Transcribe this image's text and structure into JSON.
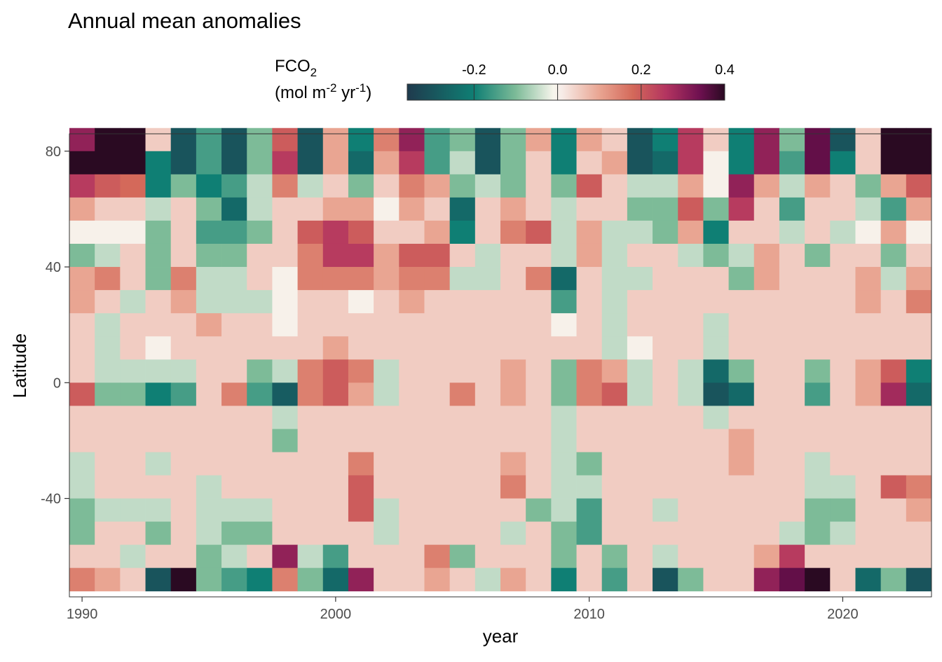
{
  "chart_data": {
    "type": "heatmap",
    "title": "Annual mean anomalies",
    "xlabel": "year",
    "ylabel": "Latitude",
    "legend": {
      "title_line1": "FCO",
      "title_line1_sub": "2",
      "title_line2_prefix": "(mol m",
      "title_line2_sup1": "-2",
      "title_line2_mid": " yr",
      "title_line2_sup2": "-1",
      "title_line2_suffix": ")",
      "ticks": [
        -0.2,
        0.0,
        0.2,
        0.4
      ],
      "tick_labels": [
        "-0.2",
        "0.0",
        "0.2",
        "0.4"
      ],
      "range": [
        -0.36,
        0.4
      ],
      "placement": "top",
      "colors": [
        "#1f3a4d",
        "#0f7f74",
        "#7dbb98",
        "#f7f5ec",
        "#f7ece8",
        "#e9a592",
        "#d4695a",
        "#b33460",
        "#6e1050",
        "#2a0a22"
      ],
      "color_stops": [
        -0.36,
        -0.2,
        -0.1,
        -0.01,
        0.01,
        0.1,
        0.18,
        0.26,
        0.34,
        0.4
      ]
    },
    "x_ticks": [
      1990,
      2000,
      2010,
      2020
    ],
    "x_tick_labels": [
      "1990",
      "2000",
      "2010",
      "2020"
    ],
    "y_ticks": [
      -40,
      0,
      40,
      80
    ],
    "y_tick_labels": [
      "-40",
      "0",
      "40",
      "80"
    ],
    "xlim": [
      1989.5,
      2023.5
    ],
    "ylim": [
      -74,
      86
    ],
    "grid": false,
    "years": [
      1990,
      1991,
      1992,
      1993,
      1994,
      1995,
      1996,
      1997,
      1998,
      1999,
      2000,
      2001,
      2002,
      2003,
      2004,
      2005,
      2006,
      2007,
      2008,
      2009,
      2010,
      2011,
      2012,
      2013,
      2014,
      2015,
      2016,
      2017,
      2018,
      2019,
      2020,
      2021,
      2022,
      2023
    ],
    "lat_bands": [
      84,
      76,
      68,
      60,
      52,
      44,
      36,
      28,
      20,
      12,
      4,
      -4,
      -12,
      -20,
      -28,
      -36,
      -44,
      -52,
      -60,
      -68
    ],
    "values": [
      [
        0.3,
        0.42,
        0.42,
        0.05,
        -0.3,
        -0.15,
        -0.3,
        -0.1,
        0.2,
        -0.3,
        0.1,
        -0.2,
        0.15,
        0.3,
        -0.15,
        -0.1,
        -0.3,
        -0.1,
        0.1,
        -0.2,
        0.1,
        0.05,
        -0.3,
        -0.2,
        0.25,
        0.05,
        -0.2,
        0.3,
        -0.1,
        0.35,
        -0.3,
        0.05,
        0.4,
        0.4
      ],
      [
        0.4,
        0.42,
        0.42,
        -0.2,
        -0.3,
        -0.15,
        -0.3,
        -0.1,
        0.25,
        -0.3,
        0.1,
        -0.25,
        0.1,
        0.25,
        -0.15,
        -0.05,
        -0.3,
        -0.1,
        0.05,
        -0.2,
        0.05,
        0.1,
        -0.3,
        -0.25,
        0.25,
        0.0,
        -0.2,
        0.3,
        -0.15,
        0.35,
        -0.2,
        0.05,
        0.4,
        0.4
      ],
      [
        0.25,
        0.2,
        0.18,
        -0.2,
        -0.1,
        -0.2,
        -0.15,
        -0.05,
        0.15,
        -0.05,
        0.05,
        -0.1,
        0.05,
        0.15,
        0.1,
        -0.1,
        -0.05,
        -0.1,
        0.05,
        -0.1,
        0.2,
        0.05,
        -0.05,
        -0.05,
        0.1,
        0.0,
        0.3,
        0.1,
        -0.05,
        0.1,
        0.05,
        -0.1,
        0.1,
        0.2
      ],
      [
        0.1,
        0.05,
        0.05,
        -0.05,
        0.05,
        -0.1,
        -0.25,
        -0.05,
        0.05,
        0.05,
        0.1,
        0.1,
        0.0,
        0.1,
        0.05,
        -0.25,
        0.05,
        0.1,
        0.05,
        -0.05,
        0.05,
        0.05,
        -0.1,
        -0.1,
        0.2,
        -0.1,
        0.25,
        0.05,
        -0.15,
        0.05,
        0.05,
        -0.05,
        -0.15,
        0.1
      ],
      [
        0.0,
        0.0,
        0.0,
        -0.1,
        0.05,
        -0.15,
        -0.15,
        -0.1,
        0.05,
        0.2,
        0.25,
        0.2,
        0.05,
        0.05,
        0.1,
        -0.2,
        0.05,
        0.15,
        0.2,
        -0.05,
        0.1,
        -0.05,
        -0.05,
        -0.1,
        0.1,
        -0.2,
        0.05,
        0.05,
        -0.05,
        0.05,
        -0.05,
        0.0,
        0.1,
        0.0
      ],
      [
        -0.1,
        -0.05,
        0.05,
        -0.1,
        0.05,
        -0.1,
        -0.1,
        0.05,
        0.05,
        0.15,
        0.25,
        0.25,
        0.1,
        0.2,
        0.2,
        0.05,
        -0.05,
        0.05,
        0.05,
        -0.05,
        0.1,
        -0.05,
        0.05,
        0.05,
        -0.05,
        -0.1,
        -0.05,
        0.1,
        0.05,
        -0.1,
        0.05,
        0.05,
        -0.1,
        0.05
      ],
      [
        0.1,
        0.15,
        0.05,
        -0.1,
        0.15,
        -0.05,
        -0.05,
        0.05,
        0.0,
        0.15,
        0.15,
        0.15,
        0.1,
        0.15,
        0.15,
        -0.05,
        -0.05,
        0.05,
        0.15,
        -0.25,
        0.05,
        -0.05,
        -0.05,
        0.05,
        0.05,
        0.05,
        -0.1,
        0.1,
        0.05,
        0.05,
        0.05,
        0.1,
        -0.05,
        0.1
      ],
      [
        0.1,
        0.05,
        -0.05,
        0.05,
        0.1,
        -0.05,
        -0.05,
        -0.05,
        0.0,
        0.05,
        0.05,
        0.0,
        0.05,
        0.1,
        0.05,
        0.05,
        0.05,
        0.05,
        0.05,
        -0.15,
        0.05,
        -0.05,
        0.05,
        0.05,
        0.05,
        0.05,
        0.05,
        0.05,
        0.05,
        0.05,
        0.05,
        0.1,
        0.05,
        0.15
      ],
      [
        0.05,
        -0.05,
        0.05,
        0.05,
        0.05,
        0.1,
        0.05,
        0.05,
        0.0,
        0.05,
        0.05,
        0.05,
        0.05,
        0.05,
        0.05,
        0.05,
        0.05,
        0.05,
        0.05,
        0.0,
        0.05,
        -0.05,
        0.05,
        0.05,
        0.05,
        -0.05,
        0.05,
        0.05,
        0.05,
        0.05,
        0.05,
        0.05,
        0.05,
        0.05
      ],
      [
        0.05,
        -0.05,
        0.05,
        0.0,
        0.05,
        0.05,
        0.05,
        0.05,
        0.05,
        0.05,
        0.1,
        0.05,
        0.05,
        0.05,
        0.05,
        0.05,
        0.05,
        0.05,
        0.05,
        0.05,
        0.05,
        -0.05,
        0.0,
        0.05,
        0.05,
        -0.05,
        0.05,
        0.05,
        0.05,
        0.05,
        0.05,
        0.05,
        0.05,
        0.05
      ],
      [
        0.05,
        -0.05,
        -0.05,
        -0.05,
        -0.05,
        0.05,
        0.05,
        -0.1,
        -0.05,
        0.15,
        0.2,
        0.15,
        -0.05,
        0.05,
        0.05,
        0.05,
        0.05,
        0.1,
        0.05,
        -0.1,
        0.15,
        0.1,
        -0.05,
        0.05,
        -0.05,
        -0.25,
        -0.1,
        0.05,
        0.05,
        -0.1,
        0.05,
        0.1,
        0.2,
        -0.2
      ],
      [
        0.2,
        -0.1,
        -0.1,
        -0.2,
        -0.15,
        0.05,
        0.15,
        -0.15,
        -0.28,
        0.15,
        0.2,
        0.1,
        -0.05,
        0.05,
        0.05,
        0.15,
        0.05,
        0.1,
        0.05,
        -0.1,
        0.15,
        0.2,
        -0.05,
        0.05,
        -0.05,
        -0.3,
        -0.25,
        0.05,
        0.05,
        -0.15,
        0.05,
        0.1,
        0.28,
        -0.25
      ],
      [
        0.05,
        0.05,
        0.05,
        0.05,
        0.05,
        0.05,
        0.05,
        0.05,
        -0.05,
        0.05,
        0.05,
        0.05,
        0.05,
        0.05,
        0.05,
        0.05,
        0.05,
        0.05,
        0.05,
        -0.05,
        0.05,
        0.05,
        0.05,
        0.05,
        0.05,
        -0.05,
        0.05,
        0.05,
        0.05,
        0.05,
        0.05,
        0.05,
        0.05,
        0.05
      ],
      [
        0.05,
        0.05,
        0.05,
        0.05,
        0.05,
        0.05,
        0.05,
        0.05,
        -0.1,
        0.05,
        0.05,
        0.05,
        0.05,
        0.05,
        0.05,
        0.05,
        0.05,
        0.05,
        0.05,
        -0.05,
        0.05,
        0.05,
        0.05,
        0.05,
        0.05,
        0.05,
        0.1,
        0.05,
        0.05,
        0.05,
        0.05,
        0.05,
        0.05,
        0.05
      ],
      [
        -0.05,
        0.05,
        0.05,
        -0.05,
        0.05,
        0.05,
        0.05,
        0.05,
        0.05,
        0.05,
        0.05,
        0.15,
        0.05,
        0.05,
        0.05,
        0.05,
        0.05,
        0.1,
        0.05,
        -0.05,
        -0.1,
        0.05,
        0.05,
        0.05,
        0.05,
        0.05,
        0.1,
        0.05,
        0.05,
        -0.05,
        0.05,
        0.05,
        0.05,
        0.05
      ],
      [
        -0.05,
        0.05,
        0.05,
        0.05,
        0.05,
        -0.05,
        0.05,
        0.05,
        0.05,
        0.05,
        0.05,
        0.2,
        0.05,
        0.05,
        0.05,
        0.05,
        0.05,
        0.15,
        0.05,
        -0.05,
        -0.05,
        0.05,
        0.05,
        0.05,
        0.05,
        0.05,
        0.05,
        0.05,
        0.05,
        -0.05,
        -0.05,
        0.05,
        0.2,
        0.15
      ],
      [
        -0.1,
        -0.05,
        -0.05,
        -0.05,
        0.05,
        -0.05,
        -0.05,
        -0.05,
        0.05,
        0.05,
        0.05,
        0.2,
        -0.05,
        0.05,
        0.05,
        0.05,
        0.05,
        0.05,
        -0.1,
        -0.05,
        -0.15,
        0.05,
        0.05,
        -0.05,
        0.05,
        0.05,
        0.05,
        0.05,
        0.05,
        -0.1,
        -0.1,
        0.05,
        0.05,
        0.1
      ],
      [
        -0.1,
        0.05,
        0.05,
        -0.1,
        0.05,
        -0.05,
        -0.1,
        -0.1,
        0.05,
        0.05,
        0.05,
        0.05,
        -0.05,
        0.05,
        0.05,
        0.05,
        0.05,
        -0.05,
        0.05,
        -0.1,
        -0.15,
        0.05,
        0.05,
        0.05,
        0.05,
        0.05,
        0.05,
        0.05,
        -0.05,
        -0.1,
        -0.05,
        0.05,
        0.05,
        0.05
      ],
      [
        0.05,
        0.05,
        -0.05,
        0.05,
        0.05,
        -0.1,
        -0.05,
        0.05,
        0.3,
        -0.05,
        -0.15,
        0.05,
        0.05,
        0.05,
        0.15,
        -0.1,
        0.05,
        0.05,
        0.05,
        -0.1,
        0.05,
        -0.1,
        0.05,
        -0.05,
        0.05,
        0.05,
        0.05,
        0.1,
        0.25,
        0.05,
        0.05,
        0.05,
        0.05,
        0.05
      ],
      [
        0.15,
        0.1,
        0.05,
        -0.3,
        0.4,
        -0.1,
        -0.15,
        -0.2,
        0.15,
        -0.1,
        -0.25,
        0.3,
        0.05,
        0.05,
        0.1,
        0.05,
        -0.05,
        0.1,
        0.05,
        -0.2,
        0.05,
        -0.15,
        0.05,
        -0.3,
        -0.1,
        0.05,
        0.05,
        0.3,
        0.35,
        0.4,
        0.05,
        -0.25,
        -0.1,
        -0.3
      ]
    ]
  }
}
